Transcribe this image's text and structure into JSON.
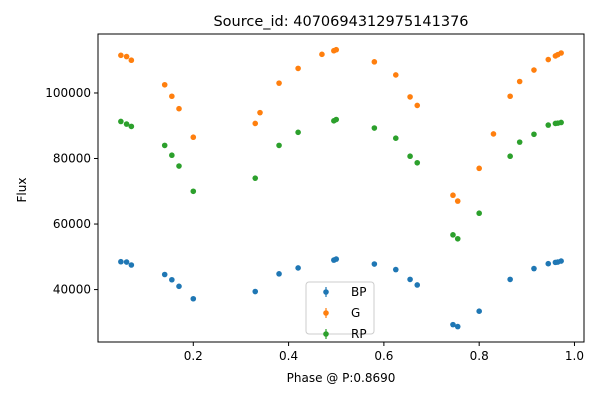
{
  "chart_data": {
    "type": "scatter",
    "title": "Source_id: 4070694312975141376",
    "xlabel": "Phase @ P:0.8690",
    "ylabel": "Flux",
    "xlim": [
      0.0,
      1.02
    ],
    "ylim": [
      24000,
      118000
    ],
    "xticks": [
      0.2,
      0.4,
      0.6,
      0.8,
      1.0
    ],
    "xtick_labels": [
      "0.2",
      "0.4",
      "0.6",
      "0.8",
      "1.0"
    ],
    "yticks": [
      40000,
      60000,
      80000,
      100000
    ],
    "ytick_labels": [
      "40000",
      "60000",
      "80000",
      "100000"
    ],
    "grid": false,
    "legend_position": "bottom-center",
    "series": [
      {
        "name": "BP",
        "color": "#1f77b4",
        "x": [
          0.048,
          0.06,
          0.07,
          0.14,
          0.155,
          0.17,
          0.2,
          0.33,
          0.38,
          0.42,
          0.495,
          0.5,
          0.58,
          0.625,
          0.655,
          0.67,
          0.745,
          0.755,
          0.8,
          0.865,
          0.915,
          0.945,
          0.96,
          0.965,
          0.972
        ],
        "y": [
          48500,
          48400,
          47500,
          44600,
          43000,
          41000,
          37200,
          39400,
          44800,
          46600,
          49000,
          49300,
          47800,
          46100,
          43100,
          41400,
          29300,
          28700,
          33400,
          43100,
          46400,
          47900,
          48300,
          48400,
          48700
        ]
      },
      {
        "name": "G",
        "color": "#ff7f0e",
        "x": [
          0.048,
          0.06,
          0.07,
          0.14,
          0.155,
          0.17,
          0.2,
          0.33,
          0.34,
          0.38,
          0.42,
          0.47,
          0.495,
          0.5,
          0.58,
          0.625,
          0.655,
          0.67,
          0.745,
          0.755,
          0.8,
          0.83,
          0.865,
          0.885,
          0.915,
          0.945,
          0.96,
          0.965,
          0.972
        ],
        "y": [
          111500,
          111100,
          110000,
          102500,
          99000,
          95200,
          86500,
          90700,
          94000,
          103000,
          107500,
          111800,
          112900,
          113200,
          109500,
          105500,
          98800,
          96200,
          68800,
          67000,
          77000,
          87500,
          99000,
          103500,
          107000,
          110200,
          111300,
          111700,
          112200
        ]
      },
      {
        "name": "RP",
        "color": "#2ca02c",
        "x": [
          0.048,
          0.06,
          0.07,
          0.14,
          0.155,
          0.17,
          0.2,
          0.33,
          0.38,
          0.42,
          0.495,
          0.5,
          0.58,
          0.625,
          0.655,
          0.67,
          0.745,
          0.755,
          0.8,
          0.865,
          0.885,
          0.915,
          0.945,
          0.96,
          0.965,
          0.972
        ],
        "y": [
          91300,
          90500,
          89800,
          84000,
          81000,
          77700,
          70000,
          74000,
          84000,
          88000,
          91500,
          91900,
          89300,
          86200,
          80700,
          78700,
          56700,
          55500,
          63300,
          80700,
          85000,
          87400,
          90200,
          90700,
          90800,
          91000
        ]
      }
    ]
  }
}
